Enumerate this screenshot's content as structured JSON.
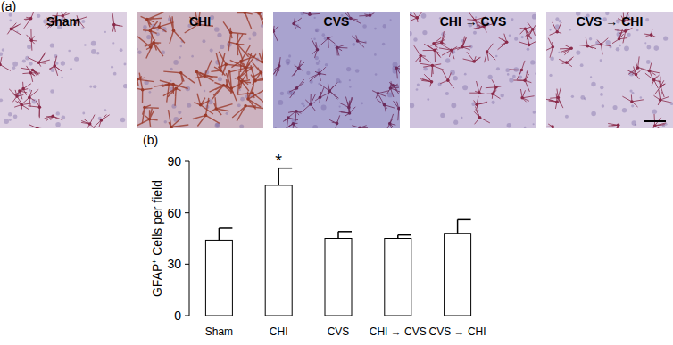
{
  "panel_a": {
    "label": "(a)",
    "images": [
      "Sham",
      "CHI",
      "CVS",
      "CHI → CVS",
      "CVS → CHI"
    ]
  },
  "chart_data": {
    "label": "(b)",
    "type": "bar",
    "y_label": "GFAP⁺ Cells per field",
    "categories": [
      "Sham",
      "CHI",
      "CVS",
      "CHI → CVS",
      "CVS → CHI"
    ],
    "values": [
      44,
      76,
      45,
      45,
      48
    ],
    "errors": [
      7,
      10,
      4,
      2,
      8
    ],
    "significance": [
      null,
      "*",
      null,
      null,
      null
    ],
    "color": "#ffffff",
    "ylim": [
      0,
      90
    ],
    "yticks": [
      0,
      30,
      60,
      90
    ],
    "grid": false
  }
}
